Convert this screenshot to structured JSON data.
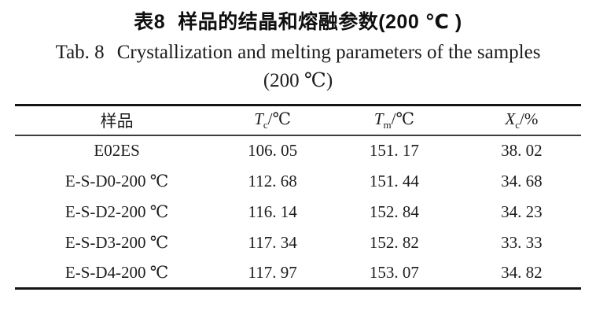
{
  "page": {
    "background": "#ffffff",
    "text_color": "#1c1c1c",
    "rule_color": "#141414"
  },
  "titles": {
    "chinese_label": "表8",
    "chinese_text": "样品的结晶和熔融参数(200 ℃ )",
    "english_label": "Tab. 8",
    "english_text": "Crystallization and melting parameters of the samples",
    "english_condition": "(200 ℃)"
  },
  "table": {
    "columns": [
      {
        "label": "样品"
      },
      {
        "symbol": "T",
        "sub": "c",
        "unit": "/℃"
      },
      {
        "symbol": "T",
        "sub": "m",
        "unit": "/℃"
      },
      {
        "symbol": "X",
        "sub": "c",
        "unit": "/%"
      }
    ],
    "rows": [
      {
        "sample": "E02ES",
        "tc": "106. 05",
        "tm": "151. 17",
        "xc": "38. 02"
      },
      {
        "sample": "E-S-D0-200 ℃",
        "tc": "112. 68",
        "tm": "151. 44",
        "xc": "34. 68"
      },
      {
        "sample": "E-S-D2-200 ℃",
        "tc": "116. 14",
        "tm": "152. 84",
        "xc": "34. 23"
      },
      {
        "sample": "E-S-D3-200 ℃",
        "tc": "117. 34",
        "tm": "152. 82",
        "xc": "33. 33"
      },
      {
        "sample": "E-S-D4-200 ℃",
        "tc": "117. 97",
        "tm": "153. 07",
        "xc": "34. 82"
      }
    ]
  }
}
